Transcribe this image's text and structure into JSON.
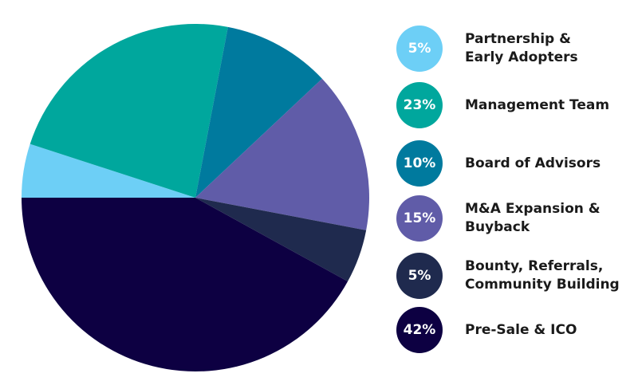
{
  "chart_data": {
    "type": "pie",
    "title": "",
    "legend_position": "right",
    "slices": [
      {
        "label": "Partnership &\nEarly Adopters",
        "percent_label": "5%",
        "value": 5,
        "color": "#6dcff6"
      },
      {
        "label": "Management Team",
        "percent_label": "23%",
        "value": 23,
        "color": "#00a79d"
      },
      {
        "label": "Board of Advisors",
        "percent_label": "10%",
        "value": 10,
        "color": "#007a9e"
      },
      {
        "label": "M&A Expansion &\nBuyback",
        "percent_label": "15%",
        "value": 15,
        "color": "#605ca8"
      },
      {
        "label": "Bounty, Referrals,\nCommunity Building",
        "percent_label": "5%",
        "value": 5,
        "color": "#1f2a4e"
      },
      {
        "label": "Pre-Sale & ICO",
        "percent_label": "42%",
        "value": 42,
        "color": "#0d0042"
      }
    ]
  }
}
